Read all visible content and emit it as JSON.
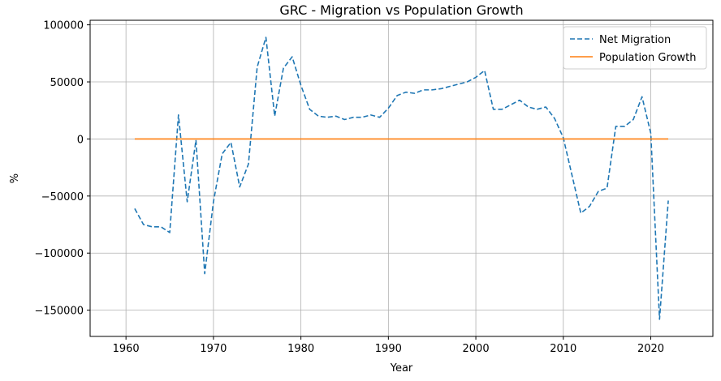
{
  "chart_data": {
    "type": "line",
    "title": "GRC - Migration vs Population Growth",
    "xlabel": "Year",
    "ylabel": "%",
    "xlim": [
      1955.9,
      2027.1
    ],
    "ylim": [
      -173000,
      104000
    ],
    "xticks": [
      1960,
      1970,
      1980,
      1990,
      2000,
      2010,
      2020
    ],
    "yticks": [
      -150000,
      -100000,
      -50000,
      0,
      50000,
      100000
    ],
    "grid": true,
    "legend_position": "top-right",
    "x": [
      1961,
      1962,
      1963,
      1964,
      1965,
      1966,
      1967,
      1968,
      1969,
      1970,
      1971,
      1972,
      1973,
      1974,
      1975,
      1976,
      1977,
      1978,
      1979,
      1980,
      1981,
      1982,
      1983,
      1984,
      1985,
      1986,
      1987,
      1988,
      1989,
      1990,
      1991,
      1992,
      1993,
      1994,
      1995,
      1996,
      1997,
      1998,
      1999,
      2000,
      2001,
      2002,
      2003,
      2004,
      2005,
      2006,
      2007,
      2008,
      2009,
      2010,
      2011,
      2012,
      2013,
      2014,
      2015,
      2016,
      2017,
      2018,
      2019,
      2020,
      2021,
      2022
    ],
    "series": [
      {
        "name": "Net Migration",
        "color": "#1f77b4",
        "style": "dashed",
        "values": [
          -61000,
          -75000,
          -77000,
          -77000,
          -82000,
          21000,
          -55000,
          -1000,
          -118000,
          -55000,
          -13000,
          -3000,
          -42000,
          -22000,
          63000,
          89000,
          20000,
          62000,
          72000,
          47000,
          26000,
          20000,
          19000,
          20000,
          17000,
          19000,
          19000,
          21000,
          19000,
          27000,
          38000,
          41000,
          40000,
          43000,
          43000,
          44000,
          46000,
          48000,
          50000,
          54000,
          60000,
          26000,
          26000,
          30000,
          34000,
          28000,
          26000,
          28000,
          18000,
          1000,
          -32000,
          -65000,
          -59000,
          -46000,
          -43000,
          11000,
          11000,
          17000,
          37000,
          5000,
          -158000,
          -54000
        ]
      },
      {
        "name": "Population Growth",
        "color": "#ff7f0e",
        "style": "solid",
        "values": [
          0.5,
          0.6,
          0.6,
          0.5,
          0.5,
          0.6,
          0.6,
          0.3,
          0.3,
          0.4,
          0.5,
          0.5,
          0.4,
          0.5,
          1.3,
          1.5,
          1.3,
          1.5,
          1.6,
          1.0,
          0.8,
          0.6,
          0.5,
          0.4,
          0.3,
          0.3,
          0.3,
          0.3,
          0.4,
          0.5,
          0.8,
          0.8,
          0.6,
          0.5,
          0.5,
          0.5,
          0.5,
          0.5,
          0.4,
          0.4,
          0.3,
          0.3,
          0.3,
          0.3,
          0.3,
          0.3,
          0.3,
          0.2,
          0.1,
          -0.1,
          -0.5,
          -0.9,
          -0.8,
          -0.6,
          -0.5,
          -0.2,
          -0.2,
          -0.2,
          -0.1,
          -0.3,
          -0.8,
          -0.6
        ]
      }
    ]
  }
}
